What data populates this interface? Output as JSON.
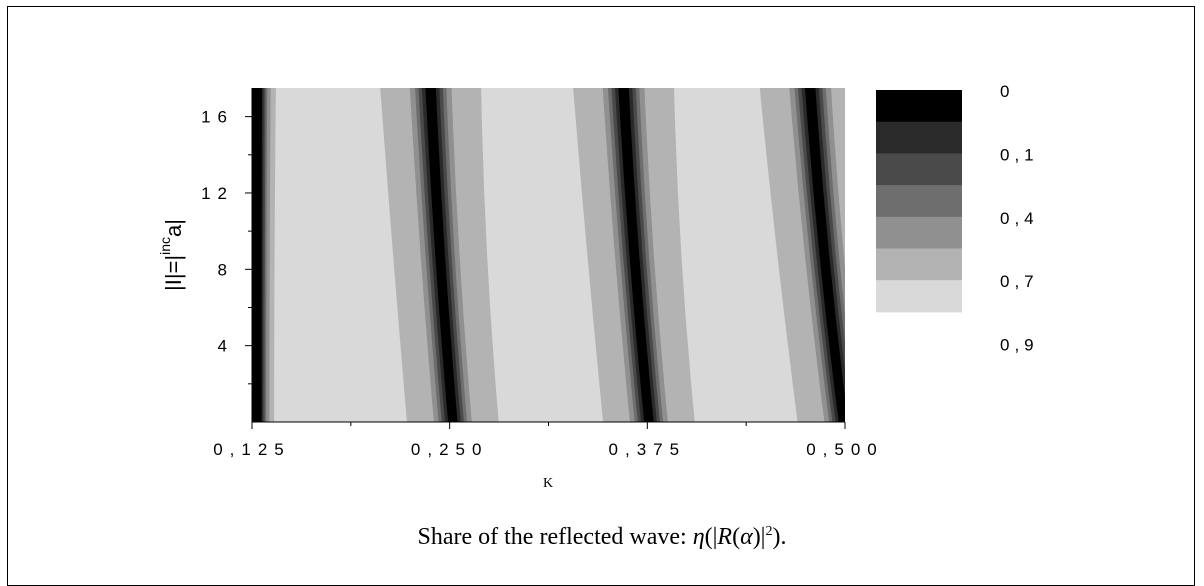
{
  "chart_data": {
    "type": "heatmap",
    "xlabel": "K",
    "ylabel": "|I|=|",
    "ylabel_sup": "inc",
    "ylabel_tail": "a|",
    "x_ticks": [
      "0,125",
      "0,250",
      "0,375",
      "0,500"
    ],
    "x_tick_values": [
      0.125,
      0.25,
      0.375,
      0.5
    ],
    "y_ticks": [
      "4",
      "8",
      "12",
      "16"
    ],
    "y_tick_values": [
      4,
      8,
      12,
      16
    ],
    "xlim": [
      0.125,
      0.5
    ],
    "ylim": [
      0,
      17.5
    ],
    "grid": false,
    "legend_position": "right",
    "legend_labels": [
      "0",
      "0,1",
      "0,4",
      "0,7",
      "0,9"
    ],
    "levels": [
      {
        "color": "#000000"
      },
      {
        "color": "#2a2a2a"
      },
      {
        "color": "#4a4a4a"
      },
      {
        "color": "#6e6e6e"
      },
      {
        "color": "#909090"
      },
      {
        "color": "#b3b3b3"
      },
      {
        "color": "#d9d9d9"
      }
    ],
    "dark_bands": [
      {
        "k_bottom": 0.128,
        "k_top": 0.128,
        "half_widths": [
          0.003,
          0.004,
          0.005,
          0.006,
          0.008,
          0.011
        ]
      },
      {
        "k_bottom": 0.252,
        "k_top": 0.238,
        "half_widths": [
          0.003,
          0.005,
          0.007,
          0.009,
          0.012,
          0.029
        ]
      },
      {
        "k_bottom": 0.376,
        "k_top": 0.36,
        "half_widths": [
          0.003,
          0.005,
          0.007,
          0.009,
          0.012,
          0.029
        ]
      },
      {
        "k_bottom": 0.499,
        "k_top": 0.478,
        "half_widths": [
          0.003,
          0.005,
          0.007,
          0.009,
          0.012,
          0.029
        ]
      }
    ]
  },
  "caption": {
    "text": "Share of the reflected wave: ",
    "formula_eta": "η",
    "formula_R": "R",
    "formula_alpha": "α",
    "formula_exp": "2",
    "formula_end": "."
  }
}
